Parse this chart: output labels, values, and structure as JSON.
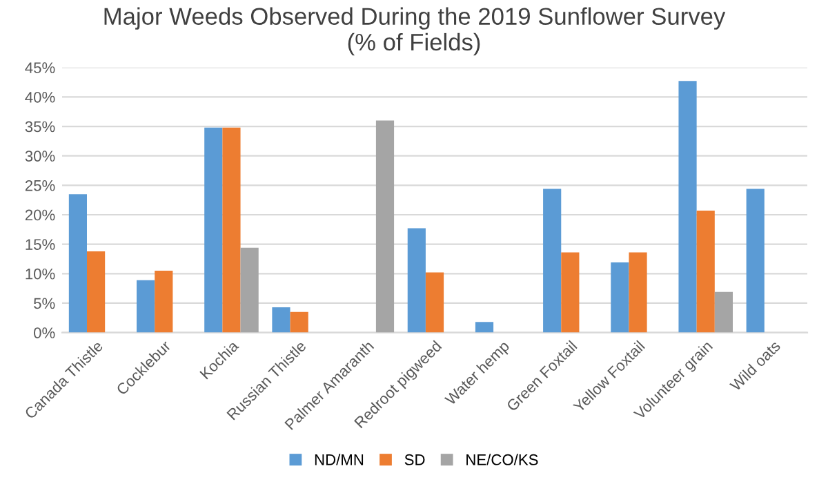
{
  "chart_data": {
    "type": "bar",
    "title": "Major Weeds Observed During the 2019 Sunflower Survey\n(% of Fields)",
    "categories": [
      "Canada Thistle",
      "Cocklebur",
      "Kochia",
      "Russian Thistle",
      "Palmer Amaranth",
      "Redroot pigweed",
      "Water hemp",
      "Green Foxtail",
      "Yellow Foxtail",
      "Volunteer grain",
      "Wild oats"
    ],
    "series": [
      {
        "name": "ND/MN",
        "color": "#5b9bd5",
        "values": [
          23.5,
          8.9,
          34.8,
          4.3,
          0,
          17.7,
          1.8,
          24.4,
          11.9,
          42.7,
          24.4
        ]
      },
      {
        "name": "SD",
        "color": "#ed7d31",
        "values": [
          13.8,
          10.5,
          34.8,
          3.5,
          0,
          10.2,
          0,
          13.6,
          13.6,
          20.7,
          0
        ]
      },
      {
        "name": "NE/CO/KS",
        "color": "#a5a5a5",
        "values": [
          0,
          0,
          14.4,
          0,
          36,
          0,
          0,
          0,
          0,
          6.9,
          0
        ]
      }
    ],
    "ylim": [
      0,
      45
    ],
    "yticks": [
      {
        "value": 0,
        "label": "0%"
      },
      {
        "value": 5,
        "label": "5%"
      },
      {
        "value": 10,
        "label": "10%"
      },
      {
        "value": 15,
        "label": "15%"
      },
      {
        "value": 20,
        "label": "20%"
      },
      {
        "value": 25,
        "label": "25%"
      },
      {
        "value": 30,
        "label": "30%"
      },
      {
        "value": 35,
        "label": "35%"
      },
      {
        "value": 40,
        "label": "40%"
      },
      {
        "value": 45,
        "label": "45%"
      }
    ],
    "grid": "y",
    "legend": "bottom"
  }
}
